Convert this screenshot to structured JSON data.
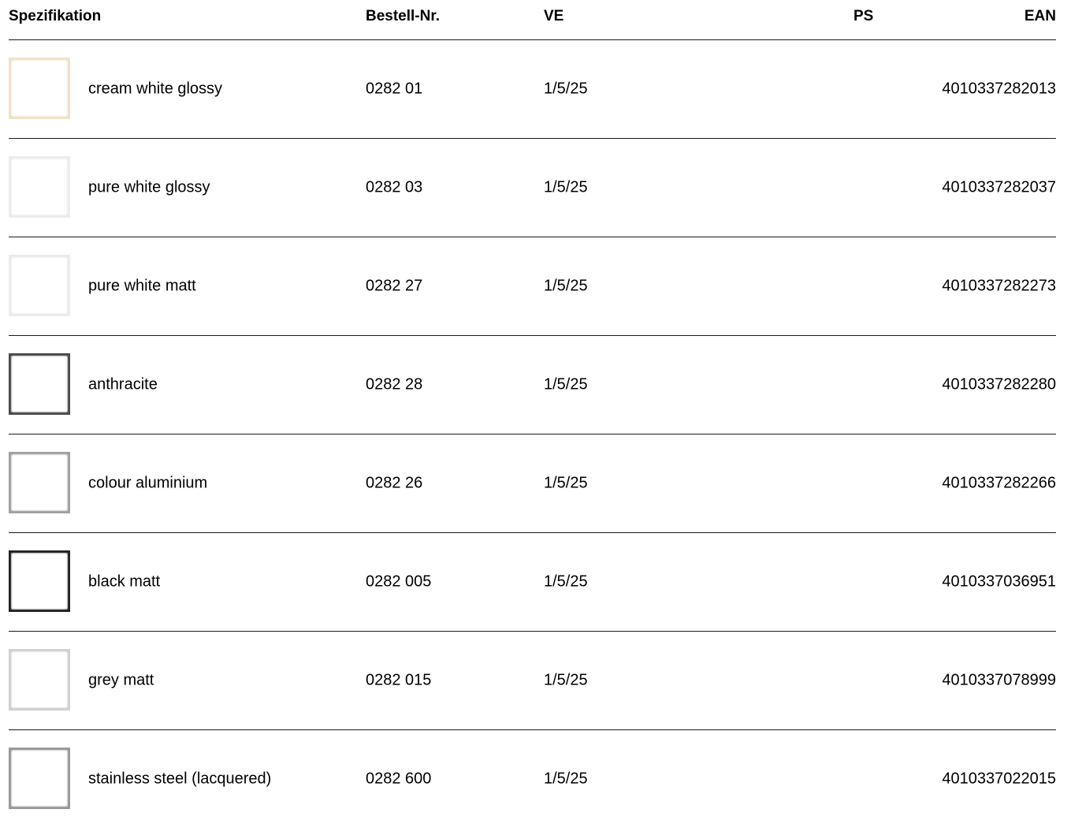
{
  "header": {
    "spec": "Spezifikation",
    "order_no": "Bestell-Nr.",
    "ve": "VE",
    "ps": "PS",
    "ean": "EAN"
  },
  "rows": [
    {
      "name": "cream white glossy",
      "order_no": "0282 01",
      "ve": "1/5/25",
      "ps": "",
      "ean": "4010337282013",
      "swatch_color": "#f0e2c4",
      "swatch_shadow": "#d9c7a0"
    },
    {
      "name": "pure white glossy",
      "order_no": "0282 03",
      "ve": "1/5/25",
      "ps": "",
      "ean": "4010337282037",
      "swatch_color": "#ececec",
      "swatch_shadow": "#cfcfcf"
    },
    {
      "name": "pure white matt",
      "order_no": "0282 27",
      "ve": "1/5/25",
      "ps": "",
      "ean": "4010337282273",
      "swatch_color": "#ebebeb",
      "swatch_shadow": "#cdcdcd"
    },
    {
      "name": "anthracite",
      "order_no": "0282 28",
      "ve": "1/5/25",
      "ps": "",
      "ean": "4010337282280",
      "swatch_color": "#4a4a4a",
      "swatch_shadow": "#2e2e2e"
    },
    {
      "name": "colour aluminium",
      "order_no": "0282 26",
      "ve": "1/5/25",
      "ps": "",
      "ean": "4010337282266",
      "swatch_color": "#a0a0a0",
      "swatch_shadow": "#7d7d7d"
    },
    {
      "name": "black matt",
      "order_no": "0282 005",
      "ve": "1/5/25",
      "ps": "",
      "ean": "4010337036951",
      "swatch_color": "#222222",
      "swatch_shadow": "#101010"
    },
    {
      "name": "grey matt",
      "order_no": "0282 015",
      "ve": "1/5/25",
      "ps": "",
      "ean": "4010337078999",
      "swatch_color": "#d0d0d0",
      "swatch_shadow": "#b0b0b0"
    },
    {
      "name": "stainless steel (lacquered)",
      "order_no": "0282 600",
      "ve": "1/5/25",
      "ps": "",
      "ean": "4010337022015",
      "swatch_color": "#9a9894",
      "swatch_shadow": "#7a7874"
    }
  ]
}
